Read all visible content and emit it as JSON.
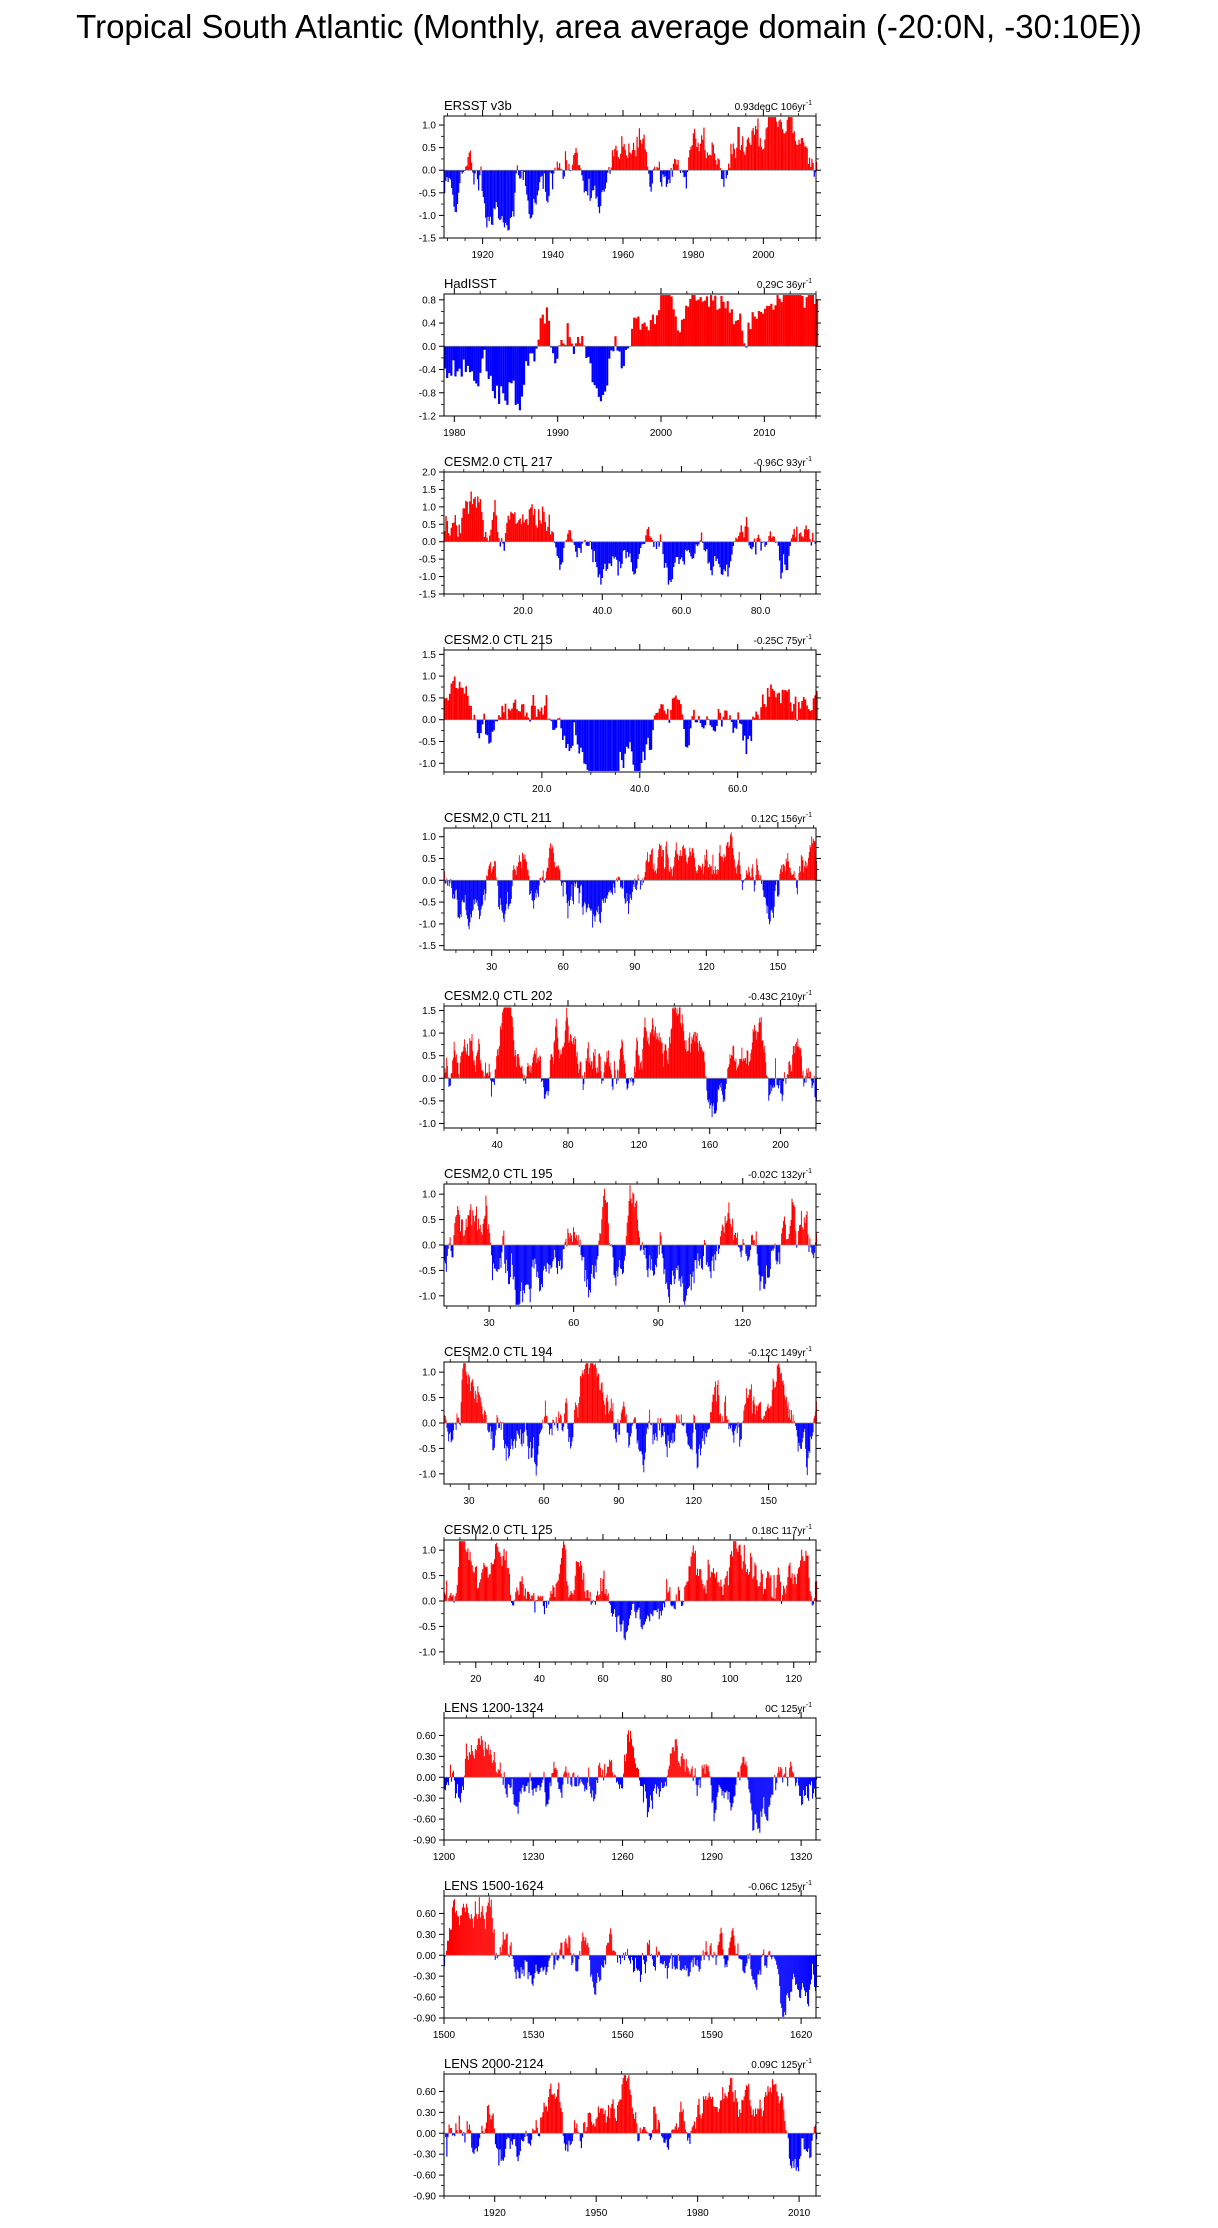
{
  "title": "Tropical South Atlantic (Monthly, area average domain (-20:0N, -30:10E))",
  "colors": {
    "positive": "#ff0000",
    "negative": "#0000ff",
    "axis": "#000000",
    "zero_line": "#808080"
  },
  "chart_data": [
    {
      "type": "bar",
      "panel_title": "ERSST v3b",
      "trend": "0.93degC 106yr",
      "trend_exp": "-1",
      "xlim": [
        1909,
        2015
      ],
      "ylim": [
        -1.5,
        1.2
      ],
      "y_ticks": [
        "1.0",
        "0.5",
        "0.0",
        "-0.5",
        "-1.0",
        "-1.5"
      ],
      "y_tick_values": [
        1.0,
        0.5,
        0.0,
        -0.5,
        -1.0,
        -1.5
      ],
      "x_ticks": [
        "1920",
        "1940",
        "1960",
        "1980",
        "2000"
      ],
      "x_tick_values": [
        1920,
        1940,
        1960,
        1980,
        2000
      ],
      "shape": {
        "start": -0.45,
        "end": 0.65,
        "amp": 0.55,
        "seed": 11
      }
    },
    {
      "type": "bar",
      "panel_title": "HadISST",
      "trend": "0.29C 36yr",
      "trend_exp": "-1",
      "xlim": [
        1979,
        2015
      ],
      "ylim": [
        -1.2,
        0.9
      ],
      "y_ticks": [
        "0.8",
        "0.4",
        "0.0",
        "-0.4",
        "-0.8",
        "-1.2"
      ],
      "y_tick_values": [
        0.8,
        0.4,
        0.0,
        -0.4,
        -0.8,
        -1.2
      ],
      "x_ticks": [
        "1980",
        "1990",
        "2000",
        "2010"
      ],
      "x_tick_values": [
        1980,
        1990,
        2000,
        2010
      ],
      "shape": {
        "start": -0.2,
        "end": 0.15,
        "amp": 0.45,
        "seed": 23
      }
    },
    {
      "type": "bar",
      "panel_title": "CESM2.0 CTL 217",
      "trend": "-0.96C 93yr",
      "trend_exp": "-1",
      "xlim": [
        0,
        94
      ],
      "ylim": [
        -1.5,
        2.0
      ],
      "y_ticks": [
        "2.0",
        "1.5",
        "1.0",
        "0.5",
        "0.0",
        "-0.5",
        "-1.0",
        "-1.5"
      ],
      "y_tick_values": [
        2.0,
        1.5,
        1.0,
        0.5,
        0.0,
        -0.5,
        -1.0,
        -1.5
      ],
      "x_ticks": [
        "20.0",
        "40.0",
        "60.0",
        "80.0"
      ],
      "x_tick_values": [
        20,
        40,
        60,
        80
      ],
      "shape": {
        "start": 0.55,
        "end": -0.5,
        "amp": 0.6,
        "seed": 37
      }
    },
    {
      "type": "bar",
      "panel_title": "CESM2.0 CTL 215",
      "trend": "-0.25C 75yr",
      "trend_exp": "-1",
      "xlim": [
        0,
        76
      ],
      "ylim": [
        -1.2,
        1.6
      ],
      "y_ticks": [
        "1.5",
        "1.0",
        "0.5",
        "0.0",
        "-0.5",
        "-1.0"
      ],
      "y_tick_values": [
        1.5,
        1.0,
        0.5,
        0.0,
        -0.5,
        -1.0
      ],
      "x_ticks": [
        "20.0",
        "40.0",
        "60.0"
      ],
      "x_tick_values": [
        20,
        40,
        60
      ],
      "shape": {
        "start": 0.15,
        "end": -0.1,
        "amp": 0.55,
        "seed": 41
      }
    },
    {
      "type": "bar",
      "panel_title": "CESM2.0 CTL 211",
      "trend": "0.12C 156yr",
      "trend_exp": "-1",
      "xlim": [
        10,
        166
      ],
      "ylim": [
        -1.6,
        1.2
      ],
      "y_ticks": [
        "1.0",
        "0.5",
        "0.0",
        "-0.5",
        "-1.0",
        "-1.5"
      ],
      "y_tick_values": [
        1.0,
        0.5,
        0.0,
        -0.5,
        -1.0,
        -1.5
      ],
      "x_ticks": [
        "30",
        "60",
        "90",
        "120",
        "150"
      ],
      "x_tick_values": [
        30,
        60,
        90,
        120,
        150
      ],
      "shape": {
        "start": -0.05,
        "end": 0.05,
        "amp": 0.5,
        "seed": 53
      }
    },
    {
      "type": "bar",
      "panel_title": "CESM2.0 CTL 202",
      "trend": "-0.43C 210yr",
      "trend_exp": "-1",
      "xlim": [
        10,
        220
      ],
      "ylim": [
        -1.1,
        1.6
      ],
      "y_ticks": [
        "1.5",
        "1.0",
        "0.5",
        "0.0",
        "-0.5",
        "-1.0"
      ],
      "y_tick_values": [
        1.5,
        1.0,
        0.5,
        0.0,
        -0.5,
        -1.0
      ],
      "x_ticks": [
        "40",
        "80",
        "120",
        "160",
        "200"
      ],
      "x_tick_values": [
        40,
        80,
        120,
        160,
        200
      ],
      "shape": {
        "start": 0.3,
        "end": -0.2,
        "amp": 0.5,
        "seed": 67
      }
    },
    {
      "type": "bar",
      "panel_title": "CESM2.0 CTL 195",
      "trend": "-0.02C 132yr",
      "trend_exp": "-1",
      "xlim": [
        14,
        146
      ],
      "ylim": [
        -1.2,
        1.2
      ],
      "y_ticks": [
        "1.0",
        "0.5",
        "0.0",
        "-0.5",
        "-1.0"
      ],
      "y_tick_values": [
        1.0,
        0.5,
        0.0,
        -0.5,
        -1.0
      ],
      "x_ticks": [
        "30",
        "60",
        "90",
        "120"
      ],
      "x_tick_values": [
        30,
        60,
        90,
        120
      ],
      "shape": {
        "start": 0.0,
        "end": 0.0,
        "amp": 0.55,
        "seed": 79
      }
    },
    {
      "type": "bar",
      "panel_title": "CESM2.0 CTL 194",
      "trend": "-0.12C 149yr",
      "trend_exp": "-1",
      "xlim": [
        20,
        169
      ],
      "ylim": [
        -1.2,
        1.2
      ],
      "y_ticks": [
        "1.0",
        "0.5",
        "0.0",
        "-0.5",
        "-1.0"
      ],
      "y_tick_values": [
        1.0,
        0.5,
        0.0,
        -0.5,
        -1.0
      ],
      "x_ticks": [
        "30",
        "60",
        "90",
        "120",
        "150"
      ],
      "x_tick_values": [
        30,
        60,
        90,
        120,
        150
      ],
      "shape": {
        "start": 0.05,
        "end": -0.05,
        "amp": 0.5,
        "seed": 83
      }
    },
    {
      "type": "bar",
      "panel_title": "CESM2.0 CTL 125",
      "trend": "0.18C 117yr",
      "trend_exp": "-1",
      "xlim": [
        10,
        127
      ],
      "ylim": [
        -1.2,
        1.2
      ],
      "y_ticks": [
        "1.0",
        "0.5",
        "0.0",
        "-0.5",
        "-1.0"
      ],
      "y_tick_values": [
        1.0,
        0.5,
        0.0,
        -0.5,
        -1.0
      ],
      "x_ticks": [
        "20",
        "40",
        "60",
        "80",
        "100",
        "120"
      ],
      "x_tick_values": [
        20,
        40,
        60,
        80,
        100,
        120
      ],
      "shape": {
        "start": -0.1,
        "end": 0.1,
        "amp": 0.5,
        "seed": 97
      }
    },
    {
      "type": "bar",
      "panel_title": "LENS 1200-1324",
      "trend": "0C 125yr",
      "trend_exp": "-1",
      "xlim": [
        1200,
        1325
      ],
      "ylim": [
        -0.9,
        0.85
      ],
      "y_ticks": [
        "0.60",
        "0.30",
        "0.00",
        "-0.30",
        "-0.60",
        "-0.90"
      ],
      "y_tick_values": [
        0.6,
        0.3,
        0.0,
        -0.3,
        -0.6,
        -0.9
      ],
      "x_ticks": [
        "1200",
        "1230",
        "1260",
        "1290",
        "1320"
      ],
      "x_tick_values": [
        1200,
        1230,
        1260,
        1290,
        1320
      ],
      "shape": {
        "start": 0.0,
        "end": 0.0,
        "amp": 0.32,
        "seed": 101
      }
    },
    {
      "type": "bar",
      "panel_title": "LENS 1500-1624",
      "trend": "-0.06C 125yr",
      "trend_exp": "-1",
      "xlim": [
        1500,
        1625
      ],
      "ylim": [
        -0.9,
        0.85
      ],
      "y_ticks": [
        "0.60",
        "0.30",
        "0.00",
        "-0.30",
        "-0.60",
        "-0.90"
      ],
      "y_tick_values": [
        0.6,
        0.3,
        0.0,
        -0.3,
        -0.6,
        -0.9
      ],
      "x_ticks": [
        "1500",
        "1530",
        "1560",
        "1590",
        "1620"
      ],
      "x_tick_values": [
        1500,
        1530,
        1560,
        1590,
        1620
      ],
      "shape": {
        "start": 0.03,
        "end": -0.03,
        "amp": 0.32,
        "seed": 113
      }
    },
    {
      "type": "bar",
      "panel_title": "LENS 2000-2124",
      "trend": "0.09C 125yr",
      "trend_exp": "-1",
      "xlim": [
        1905,
        2015
      ],
      "ylim": [
        -0.9,
        0.85
      ],
      "y_ticks": [
        "0.60",
        "0.30",
        "0.00",
        "-0.30",
        "-0.60",
        "-0.90"
      ],
      "y_tick_values": [
        0.6,
        0.3,
        0.0,
        -0.3,
        -0.6,
        -0.9
      ],
      "x_ticks": [
        "1920",
        "1950",
        "1980",
        "2010"
      ],
      "x_tick_values": [
        1920,
        1950,
        1980,
        2010
      ],
      "shape": {
        "start": -0.05,
        "end": 0.05,
        "amp": 0.32,
        "seed": 127
      }
    }
  ]
}
